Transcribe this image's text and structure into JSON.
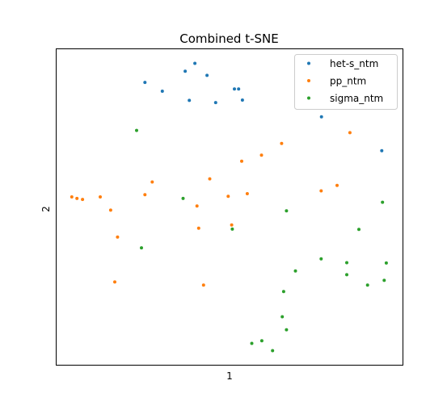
{
  "chart_data": {
    "type": "scatter",
    "title": "Combined t-SNE",
    "xlabel": "1",
    "ylabel": "2",
    "xlim": [
      0,
      100
    ],
    "ylim": [
      0,
      100
    ],
    "ticks_shown": false,
    "grid": false,
    "legend_position": "upper-right",
    "series": [
      {
        "name": "het-s_ntm",
        "color": "#1f77b4",
        "points": [
          [
            25.6,
            89.4
          ],
          [
            30.6,
            86.6
          ],
          [
            37.2,
            92.9
          ],
          [
            38.4,
            83.7
          ],
          [
            40.0,
            95.4
          ],
          [
            43.5,
            91.6
          ],
          [
            46.0,
            83.0
          ],
          [
            51.4,
            87.3
          ],
          [
            52.6,
            87.3
          ],
          [
            53.7,
            83.8
          ],
          [
            76.5,
            78.5
          ],
          [
            93.9,
            67.8
          ]
        ]
      },
      {
        "name": "pp_ntm",
        "color": "#ff7f0e",
        "points": [
          [
            4.5,
            53.2
          ],
          [
            6.0,
            52.7
          ],
          [
            7.6,
            52.4
          ],
          [
            12.7,
            53.2
          ],
          [
            15.7,
            49.0
          ],
          [
            17.7,
            40.5
          ],
          [
            25.6,
            53.9
          ],
          [
            27.7,
            57.9
          ],
          [
            16.9,
            26.3
          ],
          [
            40.6,
            50.3
          ],
          [
            41.1,
            43.3
          ],
          [
            42.5,
            25.3
          ],
          [
            44.3,
            58.9
          ],
          [
            49.6,
            53.4
          ],
          [
            50.6,
            44.3
          ],
          [
            53.5,
            64.5
          ],
          [
            55.1,
            54.2
          ],
          [
            59.2,
            66.4
          ],
          [
            65.0,
            70.1
          ],
          [
            76.4,
            55.1
          ],
          [
            81.0,
            56.8
          ],
          [
            84.7,
            73.5
          ]
        ]
      },
      {
        "name": "sigma_ntm",
        "color": "#2ca02c",
        "points": [
          [
            23.2,
            74.2
          ],
          [
            24.6,
            37.1
          ],
          [
            36.6,
            52.7
          ],
          [
            50.8,
            43.0
          ],
          [
            66.4,
            48.8
          ],
          [
            69.0,
            29.8
          ],
          [
            65.6,
            23.3
          ],
          [
            65.2,
            15.3
          ],
          [
            66.4,
            11.2
          ],
          [
            56.4,
            6.9
          ],
          [
            59.3,
            7.7
          ],
          [
            62.4,
            4.6
          ],
          [
            76.4,
            33.6
          ],
          [
            83.8,
            32.4
          ],
          [
            83.8,
            28.6
          ],
          [
            87.3,
            42.9
          ],
          [
            89.8,
            25.3
          ],
          [
            94.1,
            51.5
          ],
          [
            94.6,
            26.8
          ],
          [
            95.2,
            32.3
          ]
        ]
      }
    ]
  }
}
